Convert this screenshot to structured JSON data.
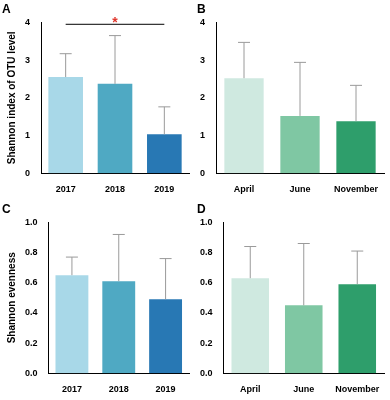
{
  "chart_data": [
    {
      "type": "bar",
      "title": "A",
      "y_label": "Shannon index of OTU level",
      "categories": [
        "2017",
        "2018",
        "2019"
      ],
      "values": [
        2.55,
        2.37,
        1.03
      ],
      "errors": [
        0.62,
        1.28,
        0.73
      ],
      "colors": [
        "#a8d8e8",
        "#4fa9c3",
        "#2878b4"
      ],
      "ylim": [
        0,
        4
      ],
      "yticks": [
        0,
        1,
        2,
        3,
        4
      ],
      "grid": false,
      "annotations": [
        {
          "text": "*",
          "from": "2017",
          "to": "2019",
          "y": 3.95
        }
      ]
    },
    {
      "type": "bar",
      "title": "B",
      "categories": [
        "April",
        "June",
        "November"
      ],
      "values": [
        2.52,
        1.52,
        1.38
      ],
      "errors": [
        0.95,
        1.42,
        0.95
      ],
      "colors": [
        "#cfe9e0",
        "#7fc7a3",
        "#2e9e6b"
      ],
      "ylim": [
        0,
        4
      ],
      "yticks": [
        0,
        1,
        2,
        3,
        4
      ],
      "grid": false
    },
    {
      "type": "bar",
      "title": "C",
      "y_label": "Shannon evenness",
      "categories": [
        "2017",
        "2018",
        "2019"
      ],
      "values": [
        0.65,
        0.61,
        0.49
      ],
      "errors": [
        0.12,
        0.31,
        0.27
      ],
      "colors": [
        "#a8d8e8",
        "#4fa9c3",
        "#2878b4"
      ],
      "ylim": [
        0,
        1
      ],
      "yticks": [
        {
          "value": 0,
          "label": "0.0"
        },
        0.2,
        0.4,
        0.6,
        0.8,
        {
          "value": 1,
          "label": "1.0"
        }
      ],
      "grid": false
    },
    {
      "type": "bar",
      "title": "D",
      "categories": [
        "April",
        "June",
        "November"
      ],
      "values": [
        0.63,
        0.45,
        0.59
      ],
      "errors": [
        0.21,
        0.41,
        0.22
      ],
      "colors": [
        "#cfe9e0",
        "#7fc7a3",
        "#2e9e6b"
      ],
      "ylim": [
        0,
        1
      ],
      "yticks": [
        {
          "value": 0,
          "label": "0.0"
        },
        0.2,
        0.4,
        0.6,
        0.8,
        {
          "value": 1,
          "label": "1.0"
        }
      ],
      "grid": false
    }
  ]
}
